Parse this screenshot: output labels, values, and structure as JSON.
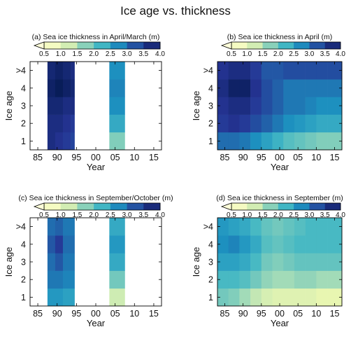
{
  "figure": {
    "title": "Ice age vs. thickness"
  },
  "colors": {
    "scale": [
      "#ffffd9",
      "#edf8b1",
      "#c7e9b4",
      "#7fcdbb",
      "#41b6c4",
      "#1d91c0",
      "#225ea8",
      "#253494",
      "#081d58"
    ],
    "no_data": "#ffffff",
    "frame": "#000000"
  },
  "chart_data": [
    {
      "type": "heatmap",
      "title": "(a) Sea ice thickness in April/March (m)",
      "xlabel": "Year",
      "ylabel": "Ice age",
      "x_ticks": [
        "85",
        "90",
        "95",
        "00",
        "05",
        "10",
        "15"
      ],
      "y_ticks": [
        "1",
        "2",
        "3",
        "4",
        ">4"
      ],
      "colorbar": {
        "ticks": [
          "0.5",
          "1.0",
          "1.5",
          "2.0",
          "2.5",
          "3.0",
          "3.5",
          "4.0"
        ],
        "range": [
          0.5,
          4.0
        ]
      },
      "x_range": [
        1983,
        2017
      ],
      "rows": [
        "1",
        "2",
        "3",
        "4",
        ">4"
      ],
      "segments": [
        {
          "x0": 1987.5,
          "x1": 1989.5,
          "values": [
            3.7,
            3.7,
            3.8,
            3.9,
            3.8
          ]
        },
        {
          "x0": 1989.5,
          "x1": 1991.5,
          "values": [
            3.6,
            3.7,
            3.8,
            4.0,
            3.9
          ]
        },
        {
          "x0": 1991.5,
          "x1": 1993.5,
          "values": [
            3.5,
            3.6,
            3.7,
            3.9,
            3.8
          ]
        },
        {
          "x0": 1993.5,
          "x1": 1994.5,
          "values": [
            3.4,
            3.5,
            3.7,
            3.8,
            3.7
          ]
        },
        {
          "x0": 2003.5,
          "x1": 2007.5,
          "values": [
            1.8,
            2.4,
            2.7,
            2.8,
            2.7
          ]
        }
      ]
    },
    {
      "type": "heatmap",
      "title": "(b) Sea ice thickness in April (m)",
      "xlabel": "Year",
      "ylabel": "Ice age",
      "x_ticks": [
        "85",
        "90",
        "95",
        "00",
        "05",
        "10",
        "15"
      ],
      "y_ticks": [
        "1",
        "2",
        "3",
        "4",
        ">4"
      ],
      "colorbar": {
        "ticks": [
          "0.5",
          "1.0",
          "1.5",
          "2.0",
          "2.5",
          "3.0",
          "3.5",
          "4.0"
        ],
        "range": [
          0.5,
          4.0
        ]
      },
      "x_range": [
        1983,
        2017
      ],
      "rows": [
        "1",
        "2",
        "3",
        "4",
        ">4"
      ],
      "segments": [
        {
          "x0": 1983,
          "x1": 1986,
          "values": [
            3.0,
            3.5,
            3.6,
            3.7,
            3.6
          ]
        },
        {
          "x0": 1986,
          "x1": 1989,
          "values": [
            3.0,
            3.6,
            3.7,
            3.9,
            3.7
          ]
        },
        {
          "x0": 1989,
          "x1": 1992,
          "values": [
            2.9,
            3.5,
            3.7,
            3.9,
            3.7
          ]
        },
        {
          "x0": 1992,
          "x1": 1995,
          "values": [
            2.7,
            3.3,
            3.5,
            3.6,
            3.5
          ]
        },
        {
          "x0": 1995,
          "x1": 1998,
          "values": [
            2.5,
            3.1,
            3.3,
            3.3,
            3.2
          ]
        },
        {
          "x0": 1998,
          "x1": 2001,
          "values": [
            2.3,
            2.9,
            3.1,
            3.1,
            3.2
          ]
        },
        {
          "x0": 2001,
          "x1": 2004,
          "values": [
            2.1,
            2.7,
            2.9,
            2.9,
            3.3
          ]
        },
        {
          "x0": 2004,
          "x1": 2007,
          "values": [
            2.0,
            2.6,
            2.9,
            2.9,
            3.3
          ]
        },
        {
          "x0": 2007,
          "x1": 2010,
          "values": [
            1.9,
            2.5,
            2.8,
            2.9,
            3.3
          ]
        },
        {
          "x0": 2010,
          "x1": 2013,
          "values": [
            1.8,
            2.4,
            2.7,
            2.9,
            3.3
          ]
        },
        {
          "x0": 2013,
          "x1": 2017,
          "values": [
            1.8,
            2.4,
            2.7,
            2.9,
            3.3
          ]
        }
      ]
    },
    {
      "type": "heatmap",
      "title": "(c) Sea ice thickness in September/October (m)",
      "xlabel": "Year",
      "ylabel": "Ice age",
      "x_ticks": [
        "85",
        "90",
        "95",
        "00",
        "05",
        "10",
        "15"
      ],
      "y_ticks": [
        "1",
        "2",
        "3",
        "4",
        ">4"
      ],
      "colorbar": {
        "ticks": [
          "0.5",
          "1.0",
          "1.5",
          "2.0",
          "2.5",
          "3.0",
          "3.5",
          "4.0"
        ],
        "range": [
          0.5,
          4.0
        ]
      },
      "x_range": [
        1983,
        2017
      ],
      "rows": [
        "1",
        "2",
        "3",
        "4",
        ">4"
      ],
      "segments": [
        {
          "x0": 1987.5,
          "x1": 1989.5,
          "values": [
            2.6,
            2.9,
            3.0,
            3.2,
            3.0
          ]
        },
        {
          "x0": 1989.5,
          "x1": 1991.5,
          "values": [
            2.6,
            2.9,
            3.2,
            3.5,
            3.1
          ]
        },
        {
          "x0": 1991.5,
          "x1": 1994.5,
          "values": [
            2.5,
            2.8,
            2.9,
            3.0,
            2.9
          ]
        },
        {
          "x0": 2003.5,
          "x1": 2007.5,
          "values": [
            1.3,
            1.9,
            2.4,
            2.6,
            2.4
          ]
        }
      ]
    },
    {
      "type": "heatmap",
      "title": "(d) Sea ice thickness in September (m)",
      "xlabel": "Year",
      "ylabel": "Ice age",
      "x_ticks": [
        "85",
        "90",
        "95",
        "00",
        "05",
        "10",
        "15"
      ],
      "y_ticks": [
        "1",
        "2",
        "3",
        "4",
        ">4"
      ],
      "colorbar": {
        "ticks": [
          "0.5",
          "1.0",
          "1.5",
          "2.0",
          "2.5",
          "3.0",
          "3.5",
          "4.0"
        ],
        "range": [
          0.5,
          4.0
        ]
      },
      "x_range": [
        1983,
        2017
      ],
      "rows": [
        "1",
        "2",
        "3",
        "4",
        ">4"
      ],
      "segments": [
        {
          "x0": 1983,
          "x1": 1986,
          "values": [
            1.9,
            2.2,
            2.5,
            2.7,
            2.6
          ]
        },
        {
          "x0": 1986,
          "x1": 1989,
          "values": [
            1.8,
            2.2,
            2.5,
            2.8,
            2.5
          ]
        },
        {
          "x0": 1989,
          "x1": 1992,
          "values": [
            1.6,
            2.1,
            2.4,
            2.6,
            2.4
          ]
        },
        {
          "x0": 1992,
          "x1": 1995,
          "values": [
            1.4,
            1.9,
            2.2,
            2.4,
            2.2
          ]
        },
        {
          "x0": 1995,
          "x1": 1998,
          "values": [
            1.2,
            1.7,
            1.9,
            2.1,
            2.0
          ]
        },
        {
          "x0": 1998,
          "x1": 2001,
          "values": [
            1.1,
            1.6,
            1.8,
            2.0,
            1.9
          ]
        },
        {
          "x0": 2001,
          "x1": 2004,
          "values": [
            1.1,
            1.6,
            1.9,
            2.1,
            2.0
          ]
        },
        {
          "x0": 2004,
          "x1": 2007,
          "values": [
            1.1,
            1.7,
            2.0,
            2.2,
            2.1
          ]
        },
        {
          "x0": 2007,
          "x1": 2010,
          "values": [
            1.1,
            1.7,
            2.0,
            2.2,
            2.2
          ]
        },
        {
          "x0": 2010,
          "x1": 2013,
          "values": [
            1.0,
            1.6,
            2.0,
            2.2,
            2.2
          ]
        },
        {
          "x0": 2013,
          "x1": 2017,
          "values": [
            1.0,
            1.6,
            2.0,
            2.2,
            2.2
          ]
        }
      ]
    }
  ]
}
